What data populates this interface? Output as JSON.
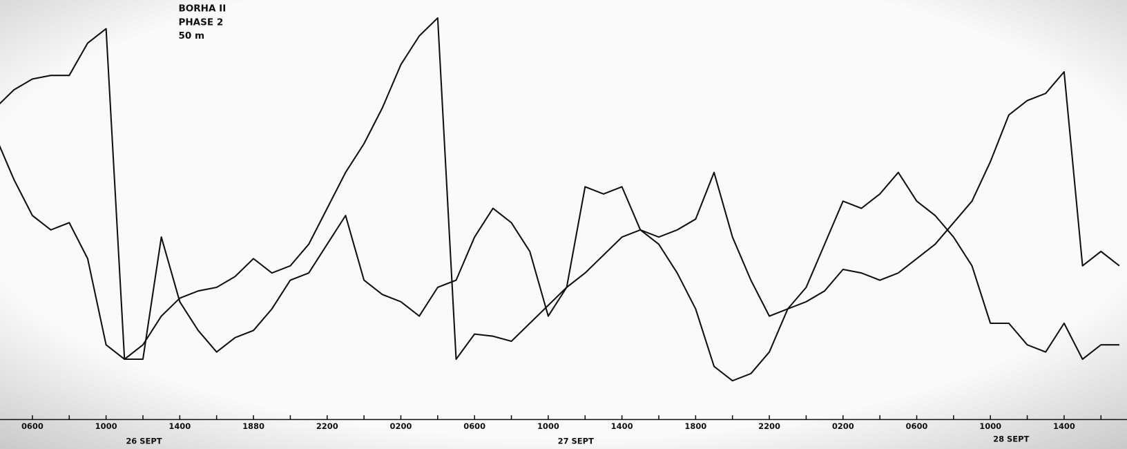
{
  "chart_data": {
    "type": "line",
    "title": "BORHA II",
    "subtitle": "PHASE 2",
    "depth": "50 m",
    "date_labels": [
      "26 SEPT",
      "27 SEPT",
      "28 SEPT"
    ],
    "categories": [
      null,
      null,
      "0600",
      null,
      null,
      null,
      "1000",
      null,
      null,
      null,
      "1400",
      null,
      null,
      null,
      "1880",
      null,
      null,
      null,
      "2200",
      null,
      null,
      null,
      "0200",
      null,
      null,
      null,
      "0600",
      null,
      null,
      null,
      "1000",
      null,
      null,
      null,
      "1400",
      null,
      null,
      null,
      "1800",
      null,
      null,
      null,
      "2200",
      null,
      null,
      null,
      "0200",
      null,
      null,
      null,
      "0600",
      null,
      null,
      null,
      "1000",
      null,
      null,
      null,
      "1400",
      null,
      null,
      null
    ],
    "series": [
      {
        "color": "#111111",
        "values": [
          43,
          45.5,
          47,
          47.5,
          47.5,
          52,
          54,
          8,
          10,
          14,
          16.5,
          17.5,
          18,
          19.5,
          22,
          20,
          21,
          24,
          29,
          34,
          38,
          43,
          49,
          53,
          55.5,
          8,
          11.5,
          11.2,
          10.5,
          13,
          15.5,
          18,
          20,
          22.5,
          25,
          26,
          25,
          26,
          27.5,
          34,
          25,
          19,
          14,
          15,
          16,
          17.5,
          20.5,
          20,
          19,
          20,
          22,
          24,
          27,
          30,
          35.5,
          42,
          44,
          45,
          48,
          21,
          23,
          21
        ]
      },
      {
        "color": "#111111",
        "values": [
          39,
          33,
          28,
          26,
          27,
          22,
          10,
          8,
          8,
          25,
          16,
          12,
          9,
          11,
          12,
          15,
          19,
          20,
          24,
          28,
          19,
          17,
          16,
          14,
          18,
          19,
          25,
          29,
          27,
          23,
          14,
          18,
          32,
          31,
          32,
          26,
          24,
          20,
          15,
          7,
          5,
          6,
          9,
          15,
          18,
          24,
          30,
          29,
          31,
          34,
          30,
          28,
          25,
          21,
          13,
          13,
          10,
          9,
          13,
          8,
          10,
          10
        ]
      }
    ]
  }
}
